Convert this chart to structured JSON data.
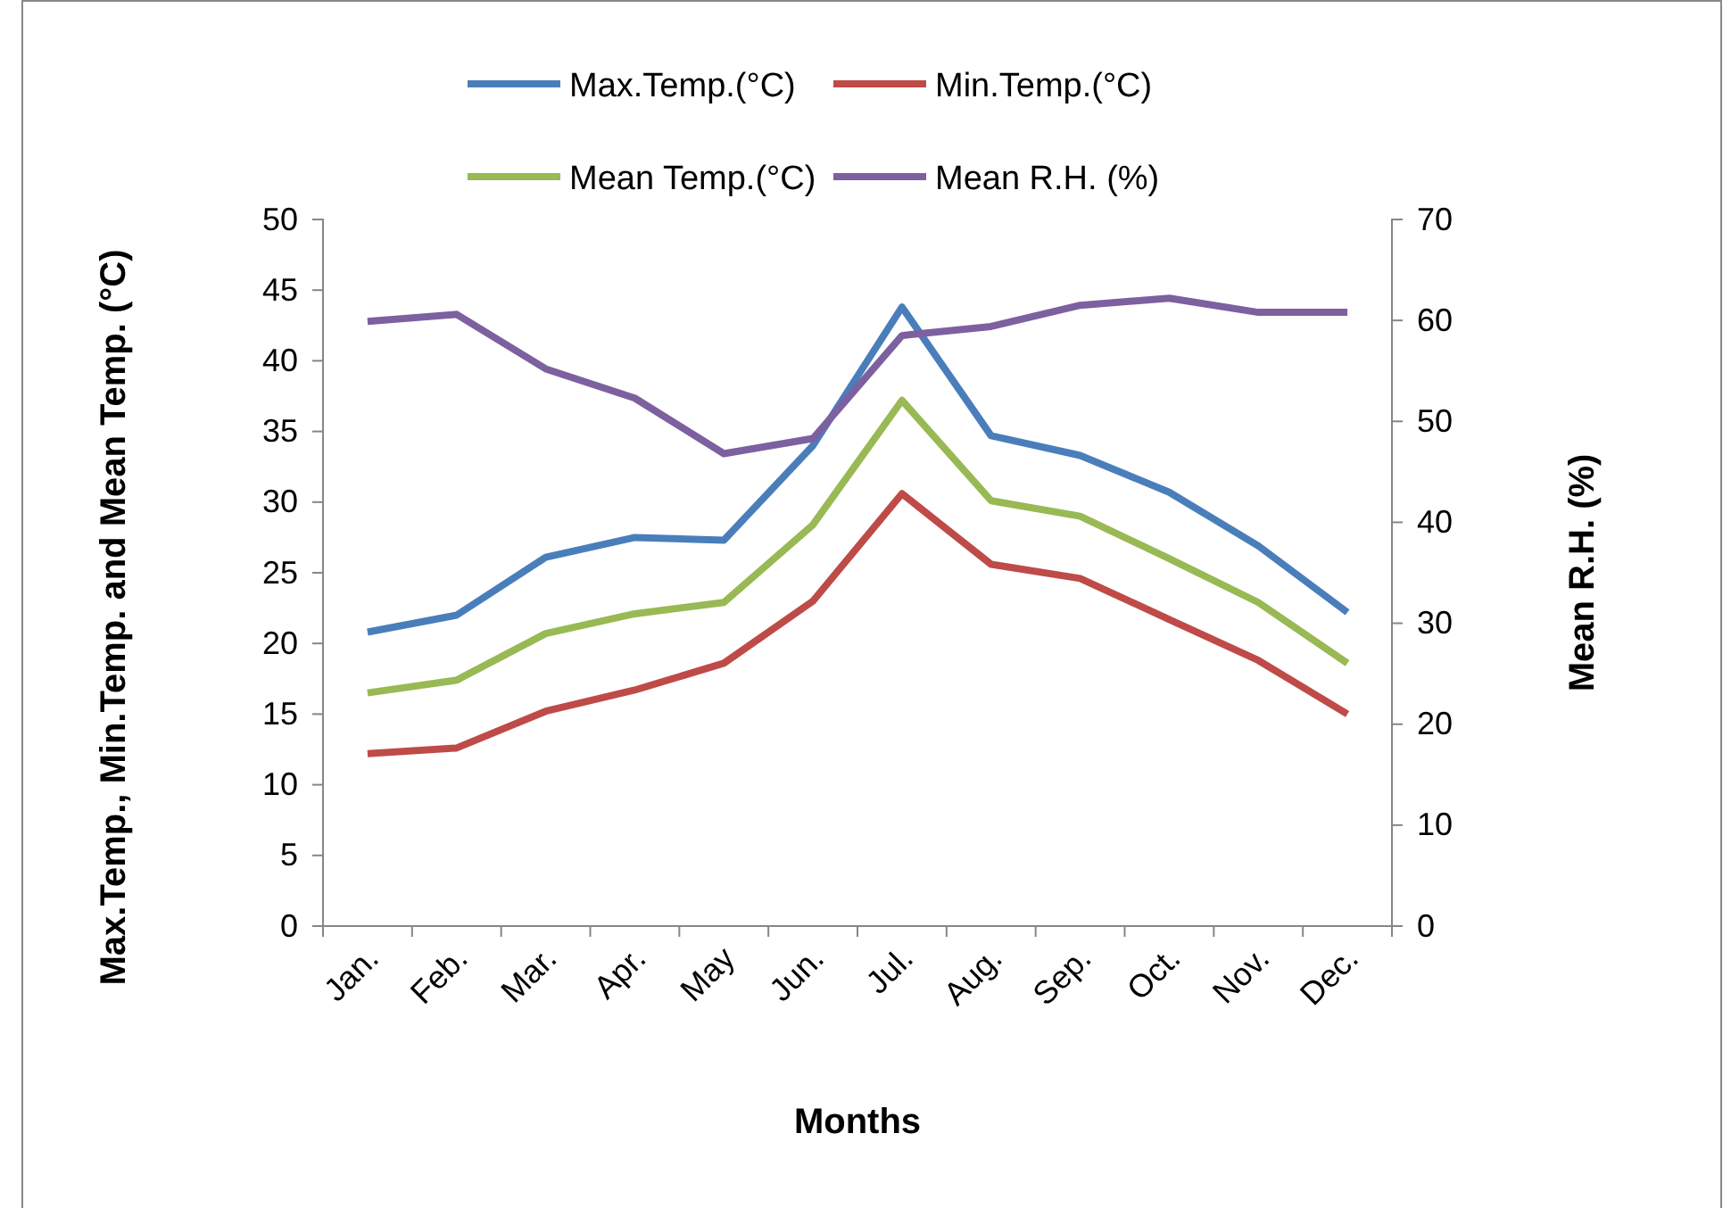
{
  "chart_data": {
    "type": "line",
    "xlabel": "Months",
    "ylabel": "Max.Temp., Min.Temp. and Mean Temp. (°C)",
    "y2label": "Mean R.H. (%)",
    "categories": [
      "Jan.",
      "Feb.",
      "Mar.",
      "Apr.",
      "May",
      "Jun.",
      "Jul.",
      "Aug.",
      "Sep.",
      "Oct.",
      "Nov.",
      "Dec."
    ],
    "series": [
      {
        "name": "Max.Temp.(°C)",
        "color": "#4a7ebb",
        "values": [
          20.8,
          22.0,
          26.1,
          27.5,
          27.3,
          34.0,
          43.8,
          34.7,
          33.3,
          30.7,
          26.9,
          22.2
        ]
      },
      {
        "name": "Min.Temp.(°C)",
        "color": "#be4b48",
        "values": [
          12.2,
          12.6,
          15.2,
          16.7,
          18.6,
          23.0,
          30.6,
          25.6,
          24.6,
          21.7,
          18.8,
          15.0
        ]
      },
      {
        "name": "Mean Temp.(°C)",
        "color": "#98b954",
        "values": [
          16.5,
          17.4,
          20.7,
          22.1,
          22.9,
          28.4,
          37.2,
          30.1,
          29.0,
          26.0,
          22.9,
          18.6
        ]
      },
      {
        "name": "Mean R.H. (%)",
        "color": "#7d60a0",
        "axis": "y2",
        "values": [
          59.9,
          60.6,
          55.2,
          52.3,
          46.8,
          48.3,
          58.5,
          59.4,
          61.5,
          62.2,
          60.8,
          60.8
        ]
      }
    ],
    "ylim": [
      0,
      50
    ],
    "yticks": [
      0,
      5,
      10,
      15,
      20,
      25,
      30,
      35,
      40,
      45,
      50
    ],
    "y2lim": [
      0,
      70
    ],
    "y2ticks": [
      0,
      10,
      20,
      30,
      40,
      50,
      60,
      70
    ],
    "legend": "top",
    "grid": false,
    "marker": "none",
    "line_style": "solid"
  }
}
